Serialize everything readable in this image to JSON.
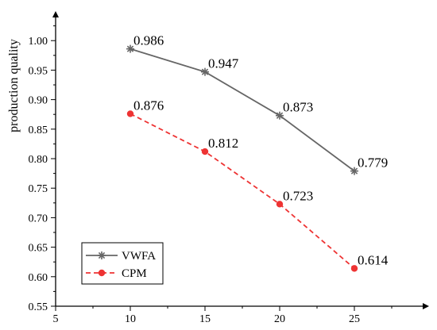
{
  "chart_data": {
    "type": "line",
    "title": "",
    "xlabel": "",
    "ylabel": "production quality",
    "x": [
      10,
      15,
      20,
      25
    ],
    "xlim": [
      5,
      30
    ],
    "ylim": [
      0.55,
      1.05
    ],
    "xticks": [
      "5",
      "10",
      "15",
      "20",
      "25"
    ],
    "yticks": [
      "0.55",
      "0.60",
      "0.65",
      "0.70",
      "0.75",
      "0.80",
      "0.85",
      "0.90",
      "0.95",
      "1.00"
    ],
    "grid": false,
    "legend_position": "bottom-left",
    "series": [
      {
        "name": "VWFA",
        "values": [
          0.986,
          0.947,
          0.873,
          0.779
        ],
        "labels": [
          "0.986",
          "0.947",
          "0.873",
          "0.779"
        ],
        "color": "#666666",
        "line_style": "solid",
        "marker": "asterisk"
      },
      {
        "name": "CPM",
        "values": [
          0.876,
          0.812,
          0.723,
          0.614
        ],
        "labels": [
          "0.876",
          "0.812",
          "0.723",
          "0.614"
        ],
        "color": "#ee3333",
        "line_style": "dashed",
        "marker": "circle"
      }
    ]
  }
}
